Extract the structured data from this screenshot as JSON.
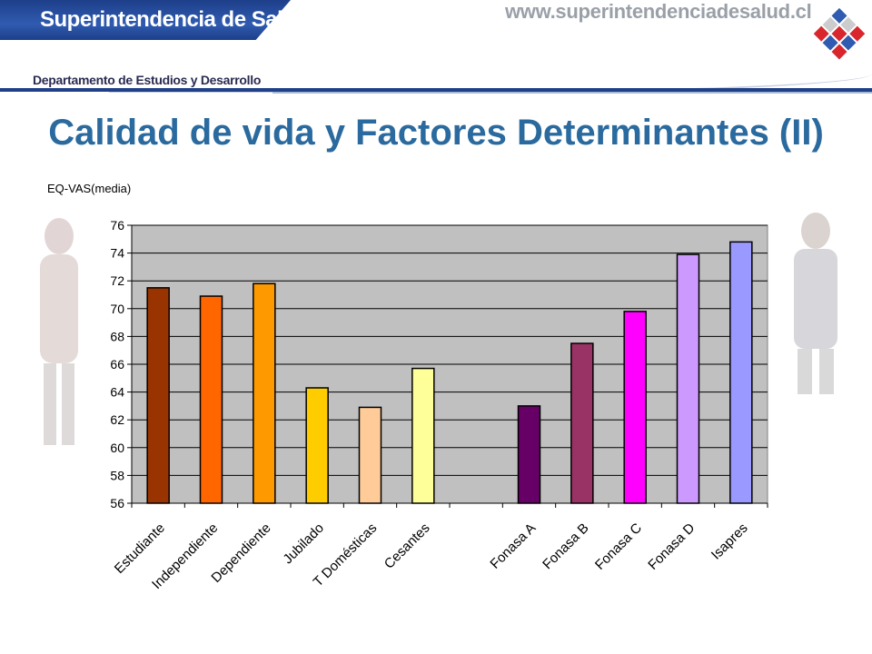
{
  "header": {
    "org_name": "Superintendencia de Salud",
    "url": "www.superintendenciadesalud.cl",
    "department": "Departamento de Estudios y Desarrollo"
  },
  "page_title": "Calidad de vida y Factores Determinantes (II)",
  "logo_icon": "checkered-cube-logo-icon",
  "colors": {
    "banner_blue": "#1e3f8a",
    "title_blue": "#2a6a9e",
    "plot_bg": "#c0c0c0"
  },
  "chart_data": {
    "type": "bar",
    "title": "",
    "ylabel": "EQ-VAS(media)",
    "xlabel": "",
    "ylim": [
      56,
      76
    ],
    "yticks": [
      56,
      58,
      60,
      62,
      64,
      66,
      68,
      70,
      72,
      74,
      76
    ],
    "grid": true,
    "legend": "none",
    "categories": [
      "Estudiante",
      "Independiente",
      "Dependiente",
      "Jubilado",
      "T Domésticas",
      "Cesantes",
      "",
      "Fonasa A",
      "Fonasa B",
      "Fonasa C",
      "Fonasa D",
      "Isapres"
    ],
    "values": [
      71.5,
      70.9,
      71.8,
      64.3,
      62.9,
      65.7,
      null,
      63.0,
      67.5,
      69.8,
      73.9,
      74.8
    ],
    "bar_colors": [
      "#993300",
      "#ff6600",
      "#ff9900",
      "#ffcc00",
      "#ffcc99",
      "#ffff99",
      null,
      "#660066",
      "#993366",
      "#ff00ff",
      "#cc99ff",
      "#9999ff"
    ]
  }
}
